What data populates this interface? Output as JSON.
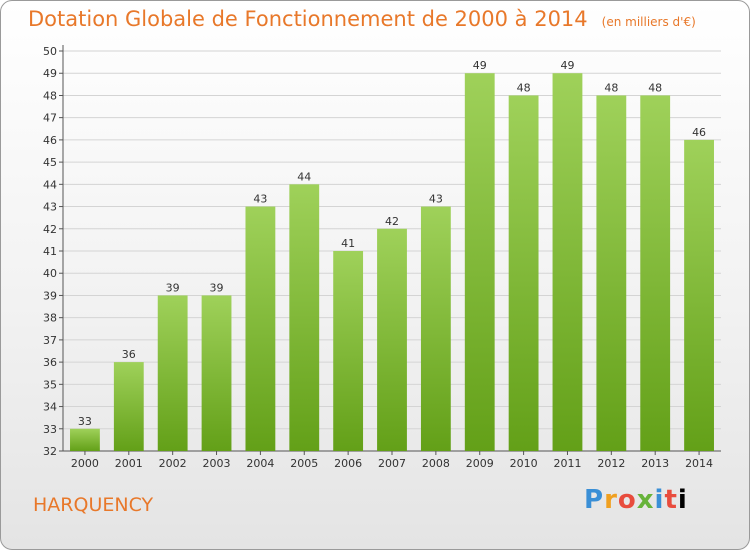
{
  "header": {
    "title": "Dotation Globale de Fonctionnement de 2000 à 2014",
    "subtitle": "(en milliers d'€)"
  },
  "footer": {
    "place": "HARQUENCY",
    "logo": "Proxiti"
  },
  "colors": {
    "bar_top": "#9fd15a",
    "bar_bottom": "#63a018",
    "title": "#e8782a",
    "grid": "#d4d4d4"
  },
  "chart_data": {
    "type": "bar",
    "title": "Dotation Globale de Fonctionnement de 2000 à 2014",
    "subtitle": "(en milliers d'€)",
    "xlabel": "",
    "ylabel": "",
    "categories": [
      "2000",
      "2001",
      "2002",
      "2003",
      "2004",
      "2005",
      "2006",
      "2007",
      "2008",
      "2009",
      "2010",
      "2011",
      "2012",
      "2013",
      "2014"
    ],
    "values": [
      33,
      36,
      39,
      39,
      43,
      44,
      41,
      42,
      43,
      49,
      48,
      49,
      48,
      48,
      46
    ],
    "ylim": [
      32,
      50
    ],
    "yticks": [
      32,
      33,
      34,
      35,
      36,
      37,
      38,
      39,
      40,
      41,
      42,
      43,
      44,
      45,
      46,
      47,
      48,
      49,
      50
    ],
    "grid": true,
    "data_labels": true
  }
}
